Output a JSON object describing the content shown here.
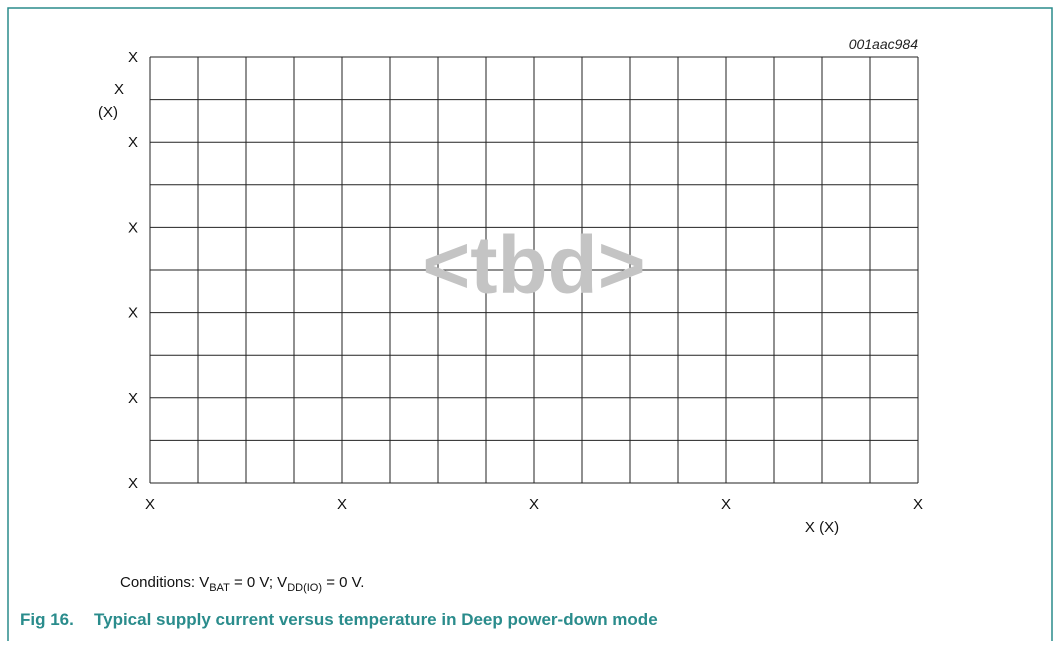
{
  "figure_id": "001aac984",
  "watermark": "<tbd>",
  "y_axis": {
    "label_top": "X",
    "label_unit": "(X)",
    "tick_labels": [
      "X",
      "X",
      "X",
      "X",
      "X",
      "X"
    ]
  },
  "x_axis": {
    "label": "X (X)",
    "tick_labels": [
      "X",
      "X",
      "X",
      "X",
      "X"
    ]
  },
  "conditions": {
    "lead": "Conditions: V",
    "sub1": "BAT",
    "mid": " = 0 V; V",
    "sub2": "DD(IO)",
    "tail": " = 0 V."
  },
  "caption": {
    "number": "Fig 16.",
    "text": "Typical supply current versus temperature in Deep power-down mode"
  }
}
